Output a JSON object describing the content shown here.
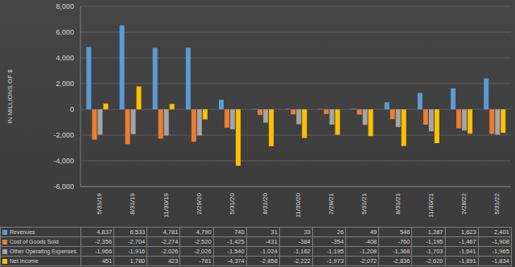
{
  "chart_data": {
    "type": "bar",
    "y_label": "IN MILLIONS OF $",
    "categories": [
      "5/31/19",
      "8/31/19",
      "11/30/19",
      "2/29/20",
      "5/31/20",
      "8/31/20",
      "11/30/20",
      "2/28/21",
      "5/31/21",
      "8/31/21",
      "11/30/21",
      "2/28/22",
      "5/31/22"
    ],
    "series": [
      {
        "name": "Revenues",
        "color": "#5b9bd5",
        "values": [
          4837,
          6533,
          4781,
          4790,
          740,
          31,
          33,
          26,
          49,
          546,
          1287,
          1623,
          2401
        ],
        "value_labels": [
          "4,837",
          "6,533",
          "4,781",
          "4,790",
          "740",
          "31",
          "33",
          "26",
          "49",
          "546",
          "1,287",
          "1,623",
          "2,401"
        ]
      },
      {
        "name": "Cost of Goods Sold",
        "color": "#ed7d31",
        "values": [
          -2356,
          -2704,
          -2274,
          -2520,
          -1425,
          -431,
          -384,
          -354,
          -408,
          -760,
          -1195,
          -1467,
          -1908
        ],
        "value_labels": [
          "-2,356",
          "-2,704",
          "-2,274",
          "-2,520",
          "-1,425",
          "-431",
          "-384",
          "-354",
          "-408",
          "-760",
          "-1,195",
          "-1,467",
          "-1,908"
        ]
      },
      {
        "name": "Other Operating Expenses",
        "color": "#a5a5a5",
        "values": [
          -1966,
          -1916,
          -2026,
          -2026,
          -1540,
          -1024,
          -1162,
          -1195,
          -1208,
          -1368,
          -1703,
          -1641,
          -1965
        ],
        "value_labels": [
          "-1,966",
          "-1,916",
          "-2,026",
          "-2,026",
          "-1,540",
          "-1,024",
          "-1,162",
          "-1,195",
          "-1,208",
          "-1,368",
          "-1,703",
          "-1,641",
          "-1,965"
        ]
      },
      {
        "name": "Net Income",
        "color": "#ffc000",
        "values": [
          451,
          1780,
          423,
          -781,
          -4374,
          -2858,
          -2222,
          -1973,
          -2072,
          -2836,
          -2620,
          -1891,
          -1834
        ],
        "value_labels": [
          "451",
          "1,780",
          "423",
          "-781",
          "-4,374",
          "-2,858",
          "-2,222",
          "-1,973",
          "-2,072",
          "-2,836",
          "-2,620",
          "-1,891",
          "-1,834"
        ]
      }
    ],
    "ylim": [
      -6000,
      8000
    ],
    "yticks": [
      {
        "value": -6000,
        "label": "-6,000"
      },
      {
        "value": -4000,
        "label": "-4,000"
      },
      {
        "value": -2000,
        "label": "-2,000"
      },
      0,
      {
        "value": 2000,
        "label": "2,000"
      },
      {
        "value": 4000,
        "label": "4,000"
      },
      {
        "value": 6000,
        "label": "6,000"
      },
      {
        "value": 8000,
        "label": "8,000"
      }
    ],
    "grid": true
  }
}
